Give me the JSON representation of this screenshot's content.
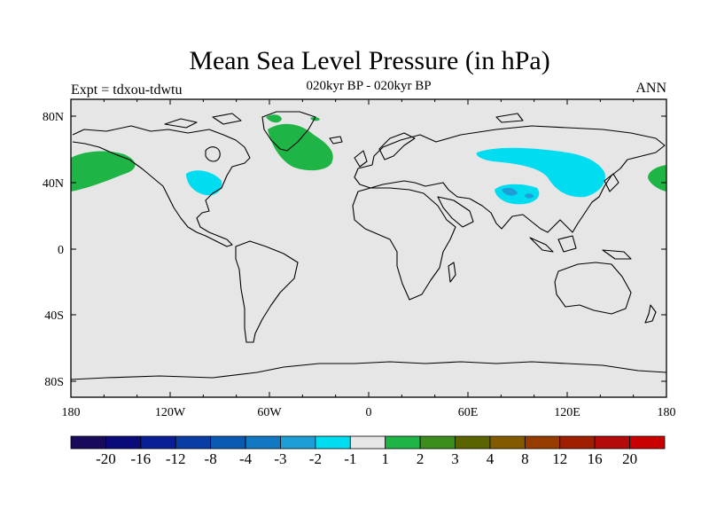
{
  "title": "Mean Sea Level Pressure (in hPa)",
  "subtitle": "020kyr BP - 020kyr BP",
  "left_label": "Expt = tdxou-tdwtu",
  "right_label": "ANN",
  "background_color": "#e6e6e6",
  "map": {
    "lon_ticks": [
      "180",
      "120W",
      "60W",
      "0",
      "60E",
      "120E",
      "180"
    ],
    "lat_ticks": [
      "80N",
      "40N",
      "0",
      "40S",
      "80S"
    ]
  },
  "colorbar": {
    "colors": [
      "#1a0a5c",
      "#0a0a7a",
      "#0a1e96",
      "#0a3ca6",
      "#0a5ab4",
      "#1278c4",
      "#1e9ed6",
      "#00dcf0",
      "#e6e6e6",
      "#1eb446",
      "#3c8c1e",
      "#5a6400",
      "#825a00",
      "#963c00",
      "#a01e00",
      "#b40a0a",
      "#c80000"
    ],
    "labels": [
      "-20",
      "-16",
      "-12",
      "-8",
      "-4",
      "-3",
      "-2",
      "-1",
      "1",
      "2",
      "3",
      "4",
      "8",
      "12",
      "16",
      "20"
    ]
  }
}
